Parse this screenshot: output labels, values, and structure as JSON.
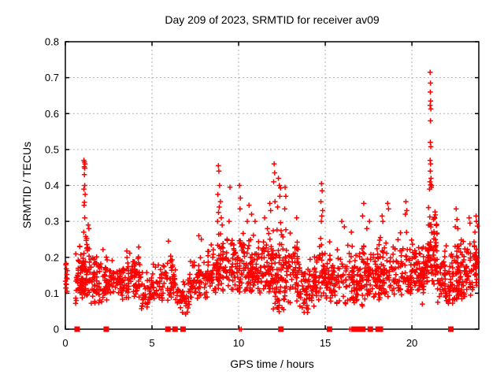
{
  "chart_data": {
    "type": "scatter",
    "title": "Day 209 of 2023, SRMTID for receiver av09",
    "xlabel": "GPS time / hours",
    "ylabel": "SRMTID / TECUs",
    "xlim": [
      0,
      23.86
    ],
    "ylim": [
      0,
      0.8
    ],
    "xticks": [
      0,
      5,
      10,
      15,
      20
    ],
    "xtick_labels": [
      "0",
      "5",
      "10",
      "15",
      "20"
    ],
    "yticks": [
      0,
      0.1,
      0.2,
      0.3,
      0.4,
      0.5,
      0.6,
      0.7,
      0.8
    ],
    "ytick_labels": [
      "0",
      "0.1",
      "0.2",
      "0.3",
      "0.4",
      "0.5",
      "0.6",
      "0.7",
      "0.8"
    ],
    "grid": "dotted",
    "legend_position": "none",
    "series_name": "SRMTID",
    "marker": {
      "shape": "plus",
      "size": 7,
      "color": "#ff0000"
    },
    "zero_marker": {
      "shape": "filled-square",
      "size": 7,
      "color": "#ff0000"
    },
    "grid_color": "#b0b0b0",
    "border_color": "#000000",
    "outlier_points": [
      [
        1.07,
        0.47
      ],
      [
        1.1,
        0.465
      ],
      [
        1.13,
        0.46
      ],
      [
        1.09,
        0.452
      ],
      [
        1.12,
        0.448
      ],
      [
        1.1,
        0.43
      ],
      [
        1.12,
        0.4
      ],
      [
        1.07,
        0.39
      ],
      [
        1.14,
        0.375
      ],
      [
        1.1,
        0.353
      ],
      [
        1.08,
        0.345
      ],
      [
        1.12,
        0.31
      ],
      [
        1.06,
        0.27
      ],
      [
        1.32,
        0.29
      ],
      [
        1.36,
        0.28
      ],
      [
        5.95,
        0.245
      ],
      [
        7.7,
        0.26
      ],
      [
        7.85,
        0.25
      ],
      [
        8.83,
        0.455
      ],
      [
        8.86,
        0.44
      ],
      [
        8.9,
        0.4
      ],
      [
        8.8,
        0.375
      ],
      [
        8.95,
        0.355
      ],
      [
        8.88,
        0.34
      ],
      [
        8.84,
        0.325
      ],
      [
        9.0,
        0.31
      ],
      [
        8.78,
        0.3
      ],
      [
        9.05,
        0.29
      ],
      [
        9.5,
        0.395
      ],
      [
        9.45,
        0.3
      ],
      [
        10.05,
        0.4
      ],
      [
        10.1,
        0.365
      ],
      [
        10.08,
        0.335
      ],
      [
        10.5,
        0.3
      ],
      [
        10.6,
        0.345
      ],
      [
        10.75,
        0.32
      ],
      [
        10.95,
        0.3
      ],
      [
        11.5,
        0.31
      ],
      [
        11.8,
        0.35
      ],
      [
        11.85,
        0.33
      ],
      [
        12.05,
        0.46
      ],
      [
        12.08,
        0.435
      ],
      [
        12.02,
        0.41
      ],
      [
        12.1,
        0.355
      ],
      [
        12.25,
        0.34
      ],
      [
        12.3,
        0.42
      ],
      [
        12.35,
        0.4
      ],
      [
        12.42,
        0.393
      ],
      [
        12.38,
        0.37
      ],
      [
        12.68,
        0.395
      ],
      [
        12.72,
        0.37
      ],
      [
        12.66,
        0.335
      ],
      [
        13.35,
        0.31
      ],
      [
        14.78,
        0.405
      ],
      [
        14.82,
        0.385
      ],
      [
        14.75,
        0.355
      ],
      [
        14.85,
        0.33
      ],
      [
        14.8,
        0.315
      ],
      [
        14.77,
        0.3
      ],
      [
        15.95,
        0.3
      ],
      [
        16.1,
        0.285
      ],
      [
        16.5,
        0.27
      ],
      [
        17.15,
        0.315
      ],
      [
        17.22,
        0.35
      ],
      [
        17.4,
        0.28
      ],
      [
        17.55,
        0.3
      ],
      [
        18.28,
        0.315
      ],
      [
        18.32,
        0.3
      ],
      [
        18.6,
        0.35
      ],
      [
        18.65,
        0.335
      ],
      [
        19.62,
        0.32
      ],
      [
        19.65,
        0.355
      ],
      [
        19.7,
        0.33
      ],
      [
        20.6,
        0.07
      ],
      [
        21.05,
        0.715
      ],
      [
        21.07,
        0.685
      ],
      [
        21.06,
        0.66
      ],
      [
        21.08,
        0.635
      ],
      [
        21.05,
        0.623
      ],
      [
        21.09,
        0.613
      ],
      [
        21.07,
        0.58
      ],
      [
        21.06,
        0.52
      ],
      [
        21.09,
        0.508
      ],
      [
        21.05,
        0.47
      ],
      [
        21.08,
        0.46
      ],
      [
        21.06,
        0.44
      ],
      [
        21.1,
        0.42
      ],
      [
        21.04,
        0.41
      ],
      [
        21.08,
        0.402
      ],
      [
        21.12,
        0.395
      ],
      [
        21.02,
        0.39
      ],
      [
        21.14,
        0.4
      ],
      [
        22.5,
        0.285
      ],
      [
        22.55,
        0.335
      ],
      [
        22.6,
        0.305
      ],
      [
        22.65,
        0.28
      ],
      [
        23.3,
        0.31
      ],
      [
        23.35,
        0.295
      ],
      [
        23.7,
        0.315
      ],
      [
        23.72,
        0.3
      ]
    ],
    "band_clusters": [
      [
        0.0,
        0.12,
        13,
        0.08,
        0.21
      ],
      [
        0.55,
        1.0,
        45,
        0.07,
        0.245
      ],
      [
        0.95,
        1.45,
        60,
        0.08,
        0.28
      ],
      [
        1.45,
        2.45,
        80,
        0.07,
        0.24
      ],
      [
        2.45,
        3.3,
        55,
        0.09,
        0.22
      ],
      [
        3.3,
        4.35,
        80,
        0.08,
        0.235
      ],
      [
        4.35,
        4.95,
        35,
        0.05,
        0.17
      ],
      [
        4.95,
        5.65,
        40,
        0.07,
        0.19
      ],
      [
        5.65,
        6.35,
        45,
        0.08,
        0.22
      ],
      [
        6.35,
        7.15,
        45,
        0.04,
        0.16
      ],
      [
        7.15,
        8.2,
        65,
        0.08,
        0.235
      ],
      [
        8.2,
        8.8,
        45,
        0.09,
        0.26
      ],
      [
        8.8,
        9.45,
        55,
        0.1,
        0.3
      ],
      [
        9.45,
        10.25,
        60,
        0.1,
        0.27
      ],
      [
        10.25,
        11.3,
        95,
        0.1,
        0.28
      ],
      [
        11.3,
        12.0,
        70,
        0.1,
        0.3
      ],
      [
        12.0,
        12.75,
        75,
        0.04,
        0.32
      ],
      [
        12.75,
        13.45,
        55,
        0.07,
        0.28
      ],
      [
        13.45,
        14.35,
        65,
        0.04,
        0.21
      ],
      [
        14.35,
        15.1,
        60,
        0.08,
        0.27
      ],
      [
        15.1,
        16.1,
        65,
        0.07,
        0.25
      ],
      [
        16.1,
        17.15,
        80,
        0.06,
        0.25
      ],
      [
        17.15,
        18.15,
        80,
        0.08,
        0.26
      ],
      [
        18.15,
        19.15,
        70,
        0.08,
        0.27
      ],
      [
        19.15,
        20.1,
        70,
        0.09,
        0.28
      ],
      [
        20.1,
        20.95,
        80,
        0.1,
        0.26
      ],
      [
        20.95,
        21.45,
        65,
        0.12,
        0.38
      ],
      [
        21.45,
        22.45,
        80,
        0.07,
        0.24
      ],
      [
        22.45,
        23.05,
        65,
        0.08,
        0.27
      ],
      [
        23.05,
        23.55,
        35,
        0.09,
        0.25
      ],
      [
        23.55,
        23.8,
        30,
        0.12,
        0.3
      ]
    ],
    "zero_square_hours": [
      0.68,
      2.36,
      5.92,
      6.33,
      6.79,
      12.44,
      15.24,
      16.68,
      16.86,
      17.02,
      17.17,
      17.6,
      18.05,
      18.18,
      22.25
    ],
    "zero_plus_hours": [
      10.05,
      10.15,
      16.42,
      16.53
    ]
  }
}
